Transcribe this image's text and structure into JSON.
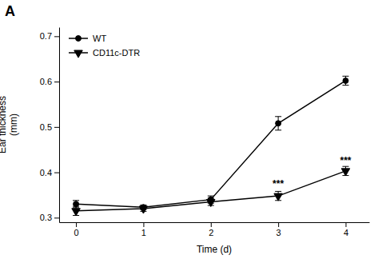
{
  "chart_data": {
    "type": "line",
    "title": "A",
    "x": [
      0,
      1,
      2,
      3,
      4
    ],
    "series": [
      {
        "name": "WT",
        "color": "#000000",
        "marker": "circle",
        "line_style": "solid",
        "values": [
          0.33,
          0.323,
          0.34,
          0.508,
          0.602
        ],
        "errors": [
          0.008,
          0.005,
          0.008,
          0.015,
          0.01
        ]
      },
      {
        "name": "CD11c-DTR",
        "color": "#000000",
        "marker": "triangle-down",
        "line_style": "solid",
        "values": [
          0.315,
          0.32,
          0.335,
          0.348,
          0.403
        ],
        "errors": [
          0.01,
          0.006,
          0.008,
          0.01,
          0.01
        ]
      }
    ],
    "annotations": [
      {
        "x": 3,
        "y": 0.368,
        "text": "***"
      },
      {
        "x": 4,
        "y": 0.418,
        "text": "***"
      }
    ],
    "xlabel": "Time (d)",
    "ylabel": "Ear thickness\n(mm)",
    "xlim": [
      -0.25,
      4.35
    ],
    "ylim": [
      0.29,
      0.72
    ],
    "xticks": [
      0,
      1,
      2,
      3,
      4
    ],
    "yticks": [
      0.3,
      0.4,
      0.5,
      0.6,
      0.7
    ],
    "grid": false,
    "legend": "upper left"
  }
}
